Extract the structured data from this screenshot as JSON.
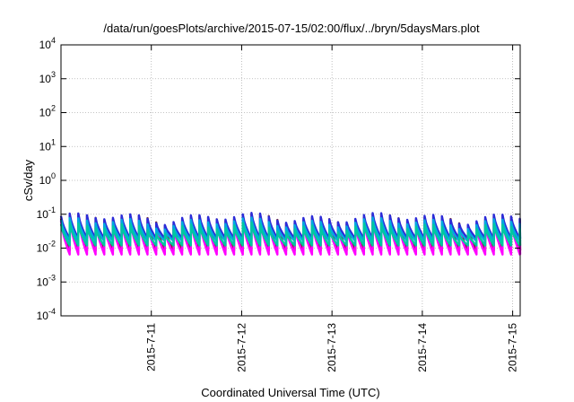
{
  "chart_data": {
    "type": "line",
    "title": "/data/run/goesPlots/archive/2015-07-15/02:00/flux/../bryn/5daysMars.plot",
    "xlabel": "Coordinated Universal Time (UTC)",
    "ylabel": "cSv/day",
    "y_scale": "log",
    "ylim": [
      0.0001,
      10000
    ],
    "y_ticks": [
      {
        "base": "10",
        "exp": "-4",
        "value": 0.0001
      },
      {
        "base": "10",
        "exp": "-3",
        "value": 0.001
      },
      {
        "base": "10",
        "exp": "-2",
        "value": 0.01
      },
      {
        "base": "10",
        "exp": "-1",
        "value": 0.1
      },
      {
        "base": "10",
        "exp": "0",
        "value": 1
      },
      {
        "base": "10",
        "exp": "1",
        "value": 10
      },
      {
        "base": "10",
        "exp": "2",
        "value": 100
      },
      {
        "base": "10",
        "exp": "3",
        "value": 1000
      },
      {
        "base": "10",
        "exp": "4",
        "value": 10000
      }
    ],
    "xlim": [
      "2015-07-10 00:00",
      "2015-07-15 02:00"
    ],
    "x_ticks": [
      {
        "label": "2015-7-11",
        "value": "2015-07-11"
      },
      {
        "label": "2015-7-12",
        "value": "2015-07-12"
      },
      {
        "label": "2015-7-13",
        "value": "2015-07-13"
      },
      {
        "label": "2015-7-14",
        "value": "2015-07-14"
      },
      {
        "label": "2015-7-15",
        "value": "2015-07-15"
      }
    ],
    "grid": true,
    "legend": "none",
    "cycle_hours": 2.3,
    "series": [
      {
        "color": "#7b2a2a",
        "peak": 0.075,
        "trough": 0.0085
      },
      {
        "color": "#ff00ff",
        "peak": 0.06,
        "trough": 0.0065
      },
      {
        "color": "#2b2bd8",
        "peak": 0.08,
        "trough": 0.019
      },
      {
        "color": "#00a9e0",
        "peak": 0.058,
        "trough": 0.016
      },
      {
        "color": "#00c8a0",
        "peak": 0.042,
        "trough": 0.012
      }
    ]
  }
}
